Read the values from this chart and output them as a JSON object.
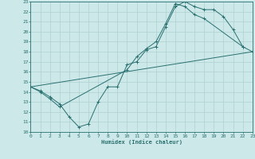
{
  "background_color": "#cce8e8",
  "grid_color": "#b0d0d0",
  "line_color": "#2a7070",
  "xlabel": "Humidex (Indice chaleur)",
  "xlim": [
    0,
    23
  ],
  "ylim": [
    10,
    23
  ],
  "xticks": [
    0,
    1,
    2,
    3,
    4,
    5,
    6,
    7,
    8,
    9,
    10,
    11,
    12,
    13,
    14,
    15,
    16,
    17,
    18,
    19,
    20,
    21,
    22,
    23
  ],
  "yticks": [
    10,
    11,
    12,
    13,
    14,
    15,
    16,
    17,
    18,
    19,
    20,
    21,
    22,
    23
  ],
  "curve1_x": [
    0,
    1,
    2,
    3,
    4,
    5,
    6,
    7,
    8,
    9,
    10,
    11,
    12,
    13,
    14,
    15,
    16,
    17,
    18,
    19,
    20,
    21,
    22
  ],
  "curve1_y": [
    14.5,
    14.1,
    13.5,
    12.8,
    11.5,
    10.5,
    10.8,
    13.0,
    14.5,
    14.5,
    16.7,
    17.0,
    18.2,
    18.5,
    20.5,
    22.5,
    23.0,
    22.5,
    22.2,
    22.2,
    21.5,
    20.2,
    18.5
  ],
  "curve2_x": [
    0,
    1,
    2,
    3,
    10,
    11,
    12,
    13,
    14,
    15,
    16,
    17,
    18,
    22,
    23
  ],
  "curve2_y": [
    14.5,
    14.0,
    13.3,
    12.5,
    16.2,
    17.5,
    18.3,
    19.0,
    20.8,
    22.8,
    22.5,
    21.7,
    21.3,
    18.5,
    18.0
  ],
  "curve3_x": [
    0,
    23
  ],
  "curve3_y": [
    14.5,
    18.0
  ]
}
